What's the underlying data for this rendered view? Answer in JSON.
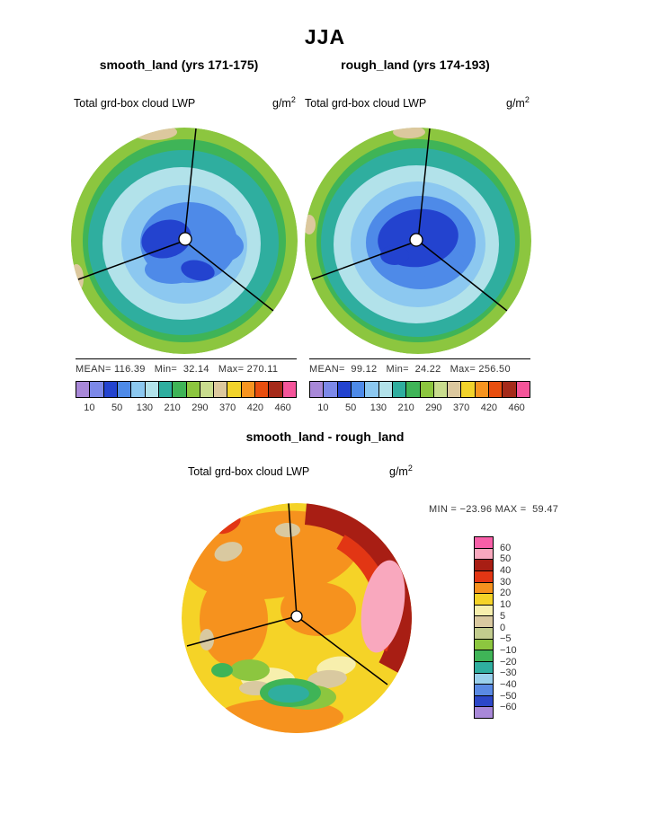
{
  "page": {
    "title": "JJA"
  },
  "panels": {
    "left": {
      "header": "smooth_land (yrs 171-175)",
      "var_label": "Total grd-box cloud LWP",
      "unit_base": "g/m",
      "unit_exp": "2",
      "stats": "MEAN= 116.39   Min=  32.14   Max= 270.11"
    },
    "right": {
      "header": "rough_land (yrs 174-193)",
      "var_label": "Total grd-box cloud LWP",
      "unit_base": "g/m",
      "unit_exp": "2",
      "stats": "MEAN=  99.12   Min=  24.22   Max= 256.50"
    }
  },
  "diff": {
    "header": "smooth_land - rough_land",
    "var_label": "Total grd-box cloud LWP",
    "unit_base": "g/m",
    "unit_exp": "2",
    "minmax": "MIN = −23.96 MAX =  59.47"
  },
  "colorbar_h": {
    "colors": [
      "#A888D8",
      "#7C88E8",
      "#2343CF",
      "#4E8AE8",
      "#8CC8F0",
      "#B2E2EA",
      "#2FAE9F",
      "#3FB457",
      "#8CC63F",
      "#C9DC8E",
      "#DCC89E",
      "#F2D32B",
      "#F79420",
      "#E84E0F",
      "#A52A1A",
      "#F4559A"
    ],
    "ticks": [
      "10",
      "50",
      "130",
      "210",
      "290",
      "370",
      "420",
      "460"
    ]
  },
  "colorbar_v": {
    "colors": [
      "#F85FA8",
      "#F9A8BE",
      "#A81E14",
      "#E23614",
      "#F6921E",
      "#F5D327",
      "#F7EFAD",
      "#D9C9A0",
      "#C2CC8E",
      "#8CC63F",
      "#3FB457",
      "#2FAE9F",
      "#9AD0EC",
      "#5A8AE4",
      "#2C47C8",
      "#A888D8"
    ],
    "ticks": [
      "60",
      "50",
      "40",
      "30",
      "20",
      "10",
      "5",
      "0",
      "−5",
      "−10",
      "−20",
      "−30",
      "−40",
      "−50",
      "−60"
    ]
  },
  "chart_data": [
    {
      "type": "heatmap",
      "subtype": "polar-contour",
      "title": "smooth_land (yrs 171-175)",
      "variable": "Total grd-box cloud LWP",
      "units": "g/m2",
      "season": "JJA",
      "mean": 116.39,
      "min": 32.14,
      "max": 270.11,
      "contour_levels_labeled": [
        10,
        50,
        130,
        210,
        290,
        370,
        420,
        460
      ],
      "palette": "colorbar_h",
      "layout": "circular polar map, bands from rim to center: yellow-green, teal, pale cyan, light blue, blue, dark blue; small white pole marker at center; three radial grid lines"
    },
    {
      "type": "heatmap",
      "subtype": "polar-contour",
      "title": "rough_land (yrs 174-193)",
      "variable": "Total grd-box cloud LWP",
      "units": "g/m2",
      "season": "JJA",
      "mean": 99.12,
      "min": 24.22,
      "max": 256.5,
      "contour_levels_labeled": [
        10,
        50,
        130,
        210,
        290,
        370,
        420,
        460
      ],
      "palette": "colorbar_h",
      "layout": "same as left panel but with larger dark-blue core around the pole"
    },
    {
      "type": "heatmap",
      "subtype": "polar-contour-difference",
      "title": "smooth_land - rough_land",
      "variable": "Total grd-box cloud LWP",
      "units": "g/m2",
      "min": -23.96,
      "max": 59.47,
      "contour_levels_labeled": [
        60,
        50,
        40,
        30,
        20,
        10,
        5,
        0,
        -5,
        -10,
        -20,
        -30,
        -40,
        -50,
        -60
      ],
      "palette": "colorbar_v",
      "layout": "mostly yellow/orange positive field, dark red and pink maximum along right rim, teal/green negative patch at bottom center, tan near-zero patches"
    }
  ]
}
